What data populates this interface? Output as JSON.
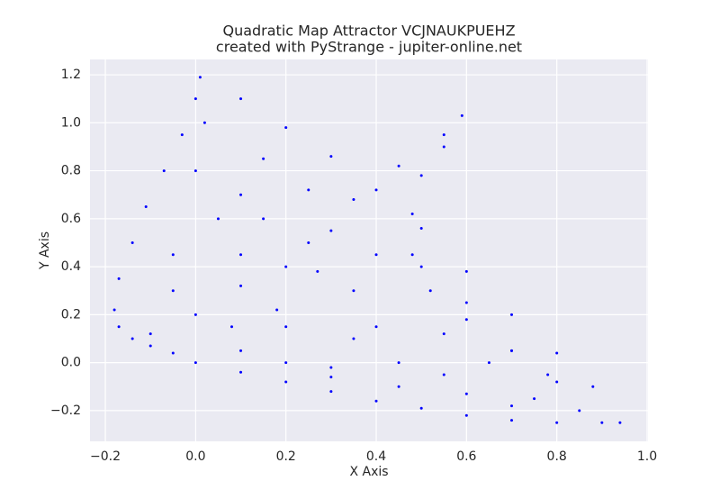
{
  "chart_data": {
    "type": "scatter",
    "title": "Quadratic Map Attractor VCJNAUKPUEHZ",
    "subtitle": "created with PyStrange - jupiter-online.net",
    "x_label": "X Axis",
    "y_label": "Y Axis",
    "xlim": [
      -0.234,
      1.002
    ],
    "ylim": [
      -0.328,
      1.264
    ],
    "xticks": [
      {
        "value": -0.2,
        "label": "−0.2"
      },
      {
        "value": 0,
        "label": "0.0"
      },
      0.2,
      0.4,
      0.6,
      0.8,
      {
        "value": 1,
        "label": "1.0"
      }
    ],
    "yticks": [
      {
        "value": -0.2,
        "label": "−0.2"
      },
      {
        "value": 0,
        "label": "0.0"
      },
      0.2,
      0.4,
      0.6,
      0.8,
      {
        "value": 1,
        "label": "1.0"
      },
      1.2
    ],
    "grid": true,
    "color": "#0000ff",
    "x": [
      0.01,
      0.0,
      -0.03,
      -0.07,
      -0.11,
      -0.14,
      -0.17,
      -0.18,
      -0.17,
      -0.14,
      -0.1,
      -0.05,
      0.0,
      0.1,
      0.2,
      0.3,
      0.4,
      0.5,
      0.6,
      0.7,
      0.8,
      0.9,
      0.94,
      0.1,
      0.2,
      0.3,
      0.4,
      0.5,
      0.6,
      0.7,
      0.8,
      0.88,
      0.59,
      0.55,
      0.5,
      0.48,
      0.48,
      0.52,
      0.6,
      0.7,
      0.8,
      0.55,
      0.45,
      0.35,
      0.25,
      0.1,
      0.0,
      -0.1,
      0.02,
      0.15,
      0.25,
      0.3,
      0.27,
      0.18,
      0.08,
      0.2,
      0.2,
      0.3,
      0.45,
      0.6,
      0.75,
      0.78,
      0.7,
      0.55,
      0.4,
      0.05,
      0.1,
      -0.05,
      0.15,
      0.2,
      0.35,
      0.35,
      0.45,
      0.55,
      0.65,
      0.5,
      0.6,
      0.4,
      0.1,
      -0.05,
      0.0,
      0.1,
      0.3,
      0.7,
      0.85
    ],
    "y": [
      1.19,
      1.1,
      0.95,
      0.8,
      0.65,
      0.5,
      0.35,
      0.22,
      0.15,
      0.1,
      0.07,
      0.04,
      0.0,
      -0.04,
      -0.08,
      -0.12,
      -0.16,
      -0.19,
      -0.22,
      -0.24,
      -0.25,
      -0.25,
      -0.25,
      1.1,
      0.98,
      0.86,
      0.72,
      0.56,
      0.38,
      0.2,
      0.04,
      -0.1,
      1.03,
      0.9,
      0.78,
      0.62,
      0.45,
      0.3,
      0.18,
      0.05,
      -0.08,
      0.95,
      0.82,
      0.68,
      0.5,
      0.32,
      0.2,
      0.12,
      1.0,
      0.85,
      0.72,
      0.55,
      0.38,
      0.22,
      0.15,
      0.15,
      0.0,
      -0.06,
      -0.1,
      -0.13,
      -0.15,
      -0.05,
      0.05,
      0.12,
      0.15,
      0.6,
      0.45,
      0.45,
      0.6,
      0.4,
      0.3,
      0.1,
      0.0,
      -0.05,
      0.0,
      0.4,
      0.25,
      0.45,
      0.05,
      0.3,
      0.8,
      0.7,
      -0.02,
      -0.18,
      -0.2
    ]
  }
}
